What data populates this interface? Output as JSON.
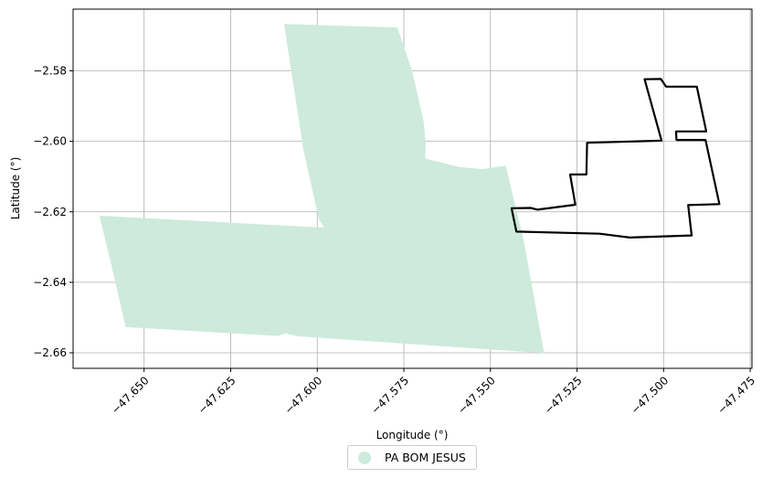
{
  "chart_data": {
    "type": "map",
    "xlabel": "Longitude (°)",
    "ylabel": "Latitude (°)",
    "xlim": [
      -47.6705,
      -47.4745
    ],
    "ylim": [
      -2.6644,
      -2.5625
    ],
    "xticks": [
      -47.65,
      -47.625,
      -47.6,
      -47.575,
      -47.55,
      -47.525,
      -47.5,
      -47.475
    ],
    "xtick_labels": [
      "−47.650",
      "−47.625",
      "−47.600",
      "−47.575",
      "−47.550",
      "−47.525",
      "−47.500",
      "−47.475"
    ],
    "yticks": [
      -2.58,
      -2.6,
      -2.62,
      -2.64,
      -2.66
    ],
    "ytick_labels": [
      "−2.58",
      "−2.60",
      "−2.62",
      "−2.64",
      "−2.66"
    ],
    "grid": true,
    "legend_position": "bottom-center",
    "series": [
      {
        "name": "PA BOM JESUS",
        "kind": "filled-polygon",
        "color": "#cdeadc",
        "points": [
          [
            -47.6096,
            -2.5667
          ],
          [
            -47.5769,
            -2.5677
          ],
          [
            -47.5727,
            -2.5797
          ],
          [
            -47.5709,
            -2.5874
          ],
          [
            -47.5693,
            -2.5943
          ],
          [
            -47.5687,
            -2.6002
          ],
          [
            -47.5688,
            -2.6049
          ],
          [
            -47.559,
            -2.6073
          ],
          [
            -47.5524,
            -2.6079
          ],
          [
            -47.5456,
            -2.6069
          ],
          [
            -47.5404,
            -2.6281
          ],
          [
            -47.5345,
            -2.6601
          ],
          [
            -47.6057,
            -2.6553
          ],
          [
            -47.6093,
            -2.6545
          ],
          [
            -47.6112,
            -2.6552
          ],
          [
            -47.617,
            -2.6549
          ],
          [
            -47.6553,
            -2.6527
          ],
          [
            -47.6602,
            -2.6319
          ],
          [
            -47.6629,
            -2.6211
          ],
          [
            -47.5979,
            -2.6245
          ],
          [
            -47.5995,
            -2.6222
          ],
          [
            -47.604,
            -2.6024
          ],
          [
            -47.6054,
            -2.5935
          ]
        ]
      },
      {
        "name": "",
        "kind": "outline",
        "color": "#000000",
        "points": [
          [
            -47.5439,
            -2.619
          ],
          [
            -47.5384,
            -2.6189
          ],
          [
            -47.5364,
            -2.6194
          ],
          [
            -47.5255,
            -2.618
          ],
          [
            -47.527,
            -2.6094
          ],
          [
            -47.5223,
            -2.6094
          ],
          [
            -47.5221,
            -2.6004
          ],
          [
            -47.5006,
            -2.5998
          ],
          [
            -47.5055,
            -2.5824
          ],
          [
            -47.5008,
            -2.5823
          ],
          [
            -47.4993,
            -2.5845
          ],
          [
            -47.4904,
            -2.5845
          ],
          [
            -47.4877,
            -2.5972
          ],
          [
            -47.4964,
            -2.5972
          ],
          [
            -47.4963,
            -2.5996
          ],
          [
            -47.4879,
            -2.5996
          ],
          [
            -47.4839,
            -2.6178
          ],
          [
            -47.4929,
            -2.6181
          ],
          [
            -47.4919,
            -2.6267
          ],
          [
            -47.5098,
            -2.6273
          ],
          [
            -47.5185,
            -2.6262
          ],
          [
            -47.5425,
            -2.6256
          ]
        ]
      }
    ]
  }
}
